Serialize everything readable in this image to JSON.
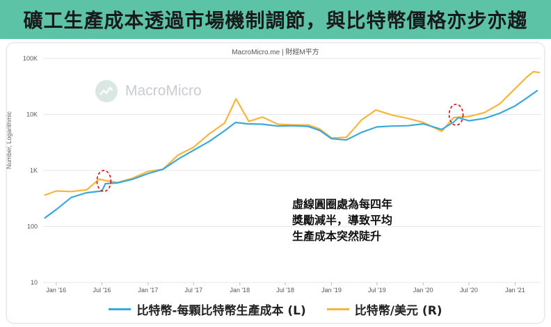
{
  "banner": {
    "title": "礦工生產成本透過市場機制調節，與比特幣價格亦步亦趨"
  },
  "source": "MacroMicro.me | 財經M平方",
  "watermark": {
    "text": "MacroMicro"
  },
  "annotation": {
    "lines": [
      "虛線圓圈處為每四年",
      "獎勵減半，導致平均",
      "生產成本突然陡升"
    ]
  },
  "colors": {
    "cost": "#3aa8db",
    "price": "#f5b63a",
    "circle": "#cc2222",
    "banner": "#5cc3a6"
  },
  "chart_data": {
    "type": "line",
    "y_scale": "log",
    "ylabel": "Number, Logarithmic",
    "ylim": [
      10,
      100000
    ],
    "y_ticks": [
      10,
      100,
      1000,
      10000,
      100000
    ],
    "y_tick_labels": [
      "10",
      "100",
      "1K",
      "10K",
      "100K"
    ],
    "xlim": [
      "2015-11-10",
      "2021-04-15"
    ],
    "x_ticks": [
      "2016-01-01",
      "2016-07-01",
      "2017-01-01",
      "2017-07-01",
      "2018-01-01",
      "2018-07-01",
      "2019-01-01",
      "2019-07-01",
      "2020-01-01",
      "2020-07-01",
      "2021-01-01"
    ],
    "x_tick_labels": [
      "Jan '16",
      "Jul '16",
      "Jan '17",
      "Jul '17",
      "Jan '18",
      "Jul '18",
      "Jan '19",
      "Jul '19",
      "Jan '20",
      "Jul '20",
      "Jan '21"
    ],
    "series": [
      {
        "name": "比特幣-每顆比特幣生產成本 (L)",
        "x": [
          "2015-11-15",
          "2016-01-01",
          "2016-03-01",
          "2016-05-01",
          "2016-07-01",
          "2016-07-15",
          "2016-09-01",
          "2016-11-01",
          "2017-01-01",
          "2017-03-01",
          "2017-05-01",
          "2017-07-01",
          "2017-09-01",
          "2017-11-01",
          "2017-12-15",
          "2018-02-01",
          "2018-04-01",
          "2018-06-01",
          "2018-08-01",
          "2018-10-01",
          "2018-11-15",
          "2019-01-01",
          "2019-03-01",
          "2019-05-01",
          "2019-07-01",
          "2019-09-01",
          "2019-11-01",
          "2020-01-01",
          "2020-03-15",
          "2020-05-01",
          "2020-05-20",
          "2020-07-01",
          "2020-09-01",
          "2020-11-01",
          "2021-01-01",
          "2021-02-15",
          "2021-04-01"
        ],
        "values": [
          140,
          200,
          330,
          400,
          430,
          580,
          600,
          700,
          880,
          1050,
          1600,
          2300,
          3300,
          5100,
          7200,
          6800,
          6700,
          6200,
          6300,
          6100,
          5200,
          3700,
          3500,
          4800,
          6000,
          6200,
          6300,
          6800,
          5400,
          7300,
          8800,
          7700,
          8500,
          10500,
          14200,
          19500,
          27000
        ]
      },
      {
        "name": "比特幣/美元 (R)",
        "x": [
          "2015-11-15",
          "2016-01-01",
          "2016-03-01",
          "2016-05-01",
          "2016-06-20",
          "2016-07-15",
          "2016-09-01",
          "2016-11-01",
          "2017-01-01",
          "2017-03-01",
          "2017-05-01",
          "2017-07-01",
          "2017-09-01",
          "2017-11-01",
          "2017-12-17",
          "2018-02-06",
          "2018-04-01",
          "2018-06-01",
          "2018-08-01",
          "2018-10-01",
          "2018-11-15",
          "2019-01-01",
          "2019-03-01",
          "2019-05-01",
          "2019-06-26",
          "2019-09-01",
          "2019-11-01",
          "2020-01-01",
          "2020-03-15",
          "2020-05-01",
          "2020-07-01",
          "2020-09-01",
          "2020-11-01",
          "2021-01-01",
          "2021-02-15",
          "2021-03-15",
          "2021-04-10"
        ],
        "values": [
          360,
          430,
          420,
          450,
          700,
          660,
          610,
          730,
          960,
          1050,
          1900,
          2600,
          4500,
          7000,
          19000,
          7500,
          9000,
          6700,
          6500,
          6500,
          5500,
          3800,
          3900,
          8000,
          12000,
          9700,
          8500,
          7200,
          5000,
          8800,
          9200,
          10800,
          15500,
          29000,
          46000,
          58000,
          56000
        ]
      }
    ],
    "annotations": [
      "2016-07-09",
      "2020-05-11"
    ]
  },
  "legend": [
    {
      "label": "比特幣-每顆比特幣生產成本 (L)",
      "color": "#3aa8db"
    },
    {
      "label": "比特幣/美元 (R)",
      "color": "#f5b63a"
    }
  ]
}
